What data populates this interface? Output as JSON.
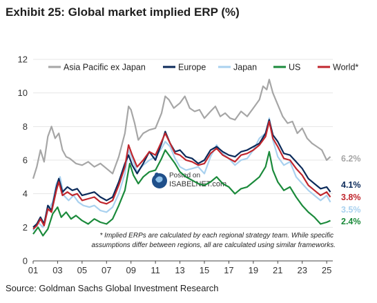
{
  "header": {
    "title": "Exhibit 25: Global market implied ERP (%)"
  },
  "footer": {
    "source": "Source: Goldman Sachs Global Investment Research"
  },
  "note": {
    "line1": "* Implied ERPs are calculated by each regional strategy team. While specific",
    "line2": "assumptions differ between regions, all are calculated using similar frameworks."
  },
  "watermark": {
    "line1": "Posted on",
    "line2": "ISABELNET.com"
  },
  "chart_data": {
    "type": "line",
    "title": "Exhibit 25: Global market implied ERP (%)",
    "xlabel": "",
    "ylabel": "",
    "x_range": [
      2001,
      2025.5
    ],
    "ylim": [
      0,
      12
    ],
    "y_ticks": [
      "0",
      "2",
      "4",
      "6",
      "8",
      "10",
      "12"
    ],
    "x_ticks": [
      {
        "year": 2001,
        "label": "01"
      },
      {
        "year": 2003,
        "label": "03"
      },
      {
        "year": 2005,
        "label": "05"
      },
      {
        "year": 2007,
        "label": "07"
      },
      {
        "year": 2009,
        "label": "09"
      },
      {
        "year": 2011,
        "label": "11"
      },
      {
        "year": 2013,
        "label": "13"
      },
      {
        "year": 2015,
        "label": "15"
      },
      {
        "year": 2017,
        "label": "17"
      },
      {
        "year": 2019,
        "label": "19"
      },
      {
        "year": 2021,
        "label": "21"
      },
      {
        "year": 2023,
        "label": "23"
      },
      {
        "year": 2025,
        "label": "25"
      }
    ],
    "grid": "horizontal",
    "legend_position": "top",
    "series": [
      {
        "name": "Asia Pacific ex Japan",
        "color": "#a6a6a6",
        "end_label": "6.2%",
        "points": [
          [
            2001,
            4.9
          ],
          [
            2001.3,
            5.6
          ],
          [
            2001.6,
            6.6
          ],
          [
            2001.9,
            5.9
          ],
          [
            2002.2,
            7.4
          ],
          [
            2002.5,
            8.0
          ],
          [
            2002.8,
            7.3
          ],
          [
            2003.1,
            7.6
          ],
          [
            2003.4,
            6.6
          ],
          [
            2003.7,
            6.2
          ],
          [
            2004,
            6.1
          ],
          [
            2004.5,
            5.8
          ],
          [
            2005,
            5.7
          ],
          [
            2005.5,
            5.9
          ],
          [
            2006,
            5.6
          ],
          [
            2006.5,
            5.8
          ],
          [
            2007,
            5.5
          ],
          [
            2007.5,
            5.2
          ],
          [
            2008,
            6.2
          ],
          [
            2008.5,
            7.6
          ],
          [
            2008.8,
            9.2
          ],
          [
            2009,
            9.0
          ],
          [
            2009.3,
            8.2
          ],
          [
            2009.6,
            7.2
          ],
          [
            2010,
            7.6
          ],
          [
            2010.5,
            7.8
          ],
          [
            2011,
            7.9
          ],
          [
            2011.5,
            8.8
          ],
          [
            2011.8,
            9.8
          ],
          [
            2012.1,
            9.6
          ],
          [
            2012.5,
            9.1
          ],
          [
            2013,
            9.4
          ],
          [
            2013.4,
            9.8
          ],
          [
            2013.8,
            9.1
          ],
          [
            2014.2,
            8.9
          ],
          [
            2014.6,
            9.0
          ],
          [
            2015,
            8.5
          ],
          [
            2015.5,
            8.9
          ],
          [
            2015.9,
            9.2
          ],
          [
            2016.3,
            8.6
          ],
          [
            2016.7,
            8.8
          ],
          [
            2017.1,
            8.5
          ],
          [
            2017.5,
            8.4
          ],
          [
            2018,
            8.9
          ],
          [
            2018.5,
            8.6
          ],
          [
            2019,
            9.1
          ],
          [
            2019.5,
            9.6
          ],
          [
            2019.8,
            10.4
          ],
          [
            2020.1,
            10.2
          ],
          [
            2020.3,
            10.8
          ],
          [
            2020.6,
            10.0
          ],
          [
            2021,
            9.3
          ],
          [
            2021.4,
            8.6
          ],
          [
            2021.8,
            8.2
          ],
          [
            2022.2,
            8.3
          ],
          [
            2022.6,
            7.6
          ],
          [
            2023,
            7.9
          ],
          [
            2023.4,
            7.3
          ],
          [
            2023.8,
            7.0
          ],
          [
            2024.2,
            6.8
          ],
          [
            2024.6,
            6.6
          ],
          [
            2025,
            6.0
          ],
          [
            2025.3,
            6.2
          ]
        ]
      },
      {
        "name": "Europe",
        "color": "#0b2a5a",
        "end_label": "4.1%",
        "points": [
          [
            2001,
            2.0
          ],
          [
            2001.3,
            2.2
          ],
          [
            2001.6,
            2.6
          ],
          [
            2001.9,
            2.2
          ],
          [
            2002.2,
            3.3
          ],
          [
            2002.5,
            3.0
          ],
          [
            2002.9,
            4.4
          ],
          [
            2003.1,
            4.9
          ],
          [
            2003.4,
            4.1
          ],
          [
            2003.8,
            4.4
          ],
          [
            2004.2,
            4.2
          ],
          [
            2004.6,
            4.3
          ],
          [
            2005,
            3.9
          ],
          [
            2005.5,
            4.0
          ],
          [
            2006,
            4.1
          ],
          [
            2006.5,
            3.8
          ],
          [
            2007,
            3.6
          ],
          [
            2007.5,
            3.8
          ],
          [
            2008,
            4.7
          ],
          [
            2008.5,
            5.8
          ],
          [
            2008.8,
            6.3
          ],
          [
            2009.1,
            5.7
          ],
          [
            2009.5,
            5.2
          ],
          [
            2010,
            5.8
          ],
          [
            2010.5,
            6.5
          ],
          [
            2011,
            6.0
          ],
          [
            2011.5,
            7.0
          ],
          [
            2011.8,
            7.7
          ],
          [
            2012.2,
            7.0
          ],
          [
            2012.6,
            6.5
          ],
          [
            2013,
            6.6
          ],
          [
            2013.5,
            6.2
          ],
          [
            2014,
            6.1
          ],
          [
            2014.5,
            5.8
          ],
          [
            2015,
            6.0
          ],
          [
            2015.5,
            6.6
          ],
          [
            2016,
            6.8
          ],
          [
            2016.5,
            6.5
          ],
          [
            2017,
            6.3
          ],
          [
            2017.5,
            6.2
          ],
          [
            2018,
            6.5
          ],
          [
            2018.5,
            6.6
          ],
          [
            2019,
            6.8
          ],
          [
            2019.5,
            7.0
          ],
          [
            2020,
            7.6
          ],
          [
            2020.3,
            8.4
          ],
          [
            2020.6,
            7.5
          ],
          [
            2021,
            7.1
          ],
          [
            2021.5,
            6.4
          ],
          [
            2022,
            6.3
          ],
          [
            2022.5,
            5.9
          ],
          [
            2023,
            5.5
          ],
          [
            2023.5,
            4.9
          ],
          [
            2024,
            4.6
          ],
          [
            2024.5,
            4.3
          ],
          [
            2025,
            4.4
          ],
          [
            2025.3,
            4.1
          ]
        ]
      },
      {
        "name": "Japan",
        "color": "#a9d1ef",
        "end_label": "3.5%",
        "points": [
          [
            2001,
            1.8
          ],
          [
            2001.4,
            2.3
          ],
          [
            2001.8,
            2.0
          ],
          [
            2002.2,
            3.0
          ],
          [
            2002.6,
            3.5
          ],
          [
            2002.9,
            4.6
          ],
          [
            2003.2,
            5.0
          ],
          [
            2003.5,
            3.9
          ],
          [
            2003.9,
            3.6
          ],
          [
            2004.3,
            3.9
          ],
          [
            2004.7,
            3.5
          ],
          [
            2005.1,
            3.3
          ],
          [
            2005.6,
            3.2
          ],
          [
            2006,
            3.3
          ],
          [
            2006.5,
            3.0
          ],
          [
            2007,
            2.9
          ],
          [
            2007.5,
            3.2
          ],
          [
            2008,
            4.0
          ],
          [
            2008.5,
            5.2
          ],
          [
            2008.8,
            6.6
          ],
          [
            2009.1,
            6.1
          ],
          [
            2009.5,
            5.3
          ],
          [
            2010,
            5.7
          ],
          [
            2010.5,
            6.0
          ],
          [
            2011,
            6.2
          ],
          [
            2011.5,
            6.7
          ],
          [
            2011.8,
            7.1
          ],
          [
            2012.2,
            6.8
          ],
          [
            2012.6,
            6.1
          ],
          [
            2013,
            5.6
          ],
          [
            2013.5,
            5.4
          ],
          [
            2014,
            5.5
          ],
          [
            2014.5,
            5.6
          ],
          [
            2015,
            5.2
          ],
          [
            2015.5,
            6.2
          ],
          [
            2016,
            6.9
          ],
          [
            2016.5,
            6.4
          ],
          [
            2017,
            6.1
          ],
          [
            2017.5,
            5.7
          ],
          [
            2018,
            6.0
          ],
          [
            2018.5,
            6.1
          ],
          [
            2019,
            6.6
          ],
          [
            2019.5,
            7.3
          ],
          [
            2020,
            7.6
          ],
          [
            2020.3,
            8.5
          ],
          [
            2020.6,
            7.2
          ],
          [
            2021,
            6.2
          ],
          [
            2021.5,
            5.7
          ],
          [
            2022,
            5.9
          ],
          [
            2022.5,
            5.0
          ],
          [
            2023,
            4.6
          ],
          [
            2023.5,
            4.2
          ],
          [
            2024,
            3.9
          ],
          [
            2024.5,
            3.6
          ],
          [
            2025,
            3.9
          ],
          [
            2025.3,
            3.5
          ]
        ]
      },
      {
        "name": "US",
        "color": "#1b8a3b",
        "end_label": "2.4%",
        "points": [
          [
            2001,
            1.6
          ],
          [
            2001.4,
            2.0
          ],
          [
            2001.8,
            1.5
          ],
          [
            2002.2,
            1.9
          ],
          [
            2002.6,
            2.8
          ],
          [
            2003,
            3.2
          ],
          [
            2003.3,
            2.6
          ],
          [
            2003.7,
            2.9
          ],
          [
            2004.1,
            2.5
          ],
          [
            2004.5,
            2.7
          ],
          [
            2005,
            2.4
          ],
          [
            2005.5,
            2.2
          ],
          [
            2006,
            2.5
          ],
          [
            2006.5,
            2.3
          ],
          [
            2007,
            2.2
          ],
          [
            2007.5,
            2.5
          ],
          [
            2008,
            3.3
          ],
          [
            2008.5,
            4.2
          ],
          [
            2008.9,
            5.8
          ],
          [
            2009.2,
            5.1
          ],
          [
            2009.6,
            4.6
          ],
          [
            2010,
            5.0
          ],
          [
            2010.5,
            5.3
          ],
          [
            2011,
            5.4
          ],
          [
            2011.5,
            6.1
          ],
          [
            2011.8,
            6.6
          ],
          [
            2012.2,
            6.2
          ],
          [
            2012.6,
            5.8
          ],
          [
            2013,
            5.3
          ],
          [
            2013.5,
            5.0
          ],
          [
            2014,
            4.8
          ],
          [
            2014.5,
            4.6
          ],
          [
            2015,
            4.5
          ],
          [
            2015.5,
            4.7
          ],
          [
            2016,
            5.0
          ],
          [
            2016.5,
            4.6
          ],
          [
            2017,
            4.4
          ],
          [
            2017.5,
            4.0
          ],
          [
            2018,
            4.3
          ],
          [
            2018.5,
            4.4
          ],
          [
            2019,
            4.7
          ],
          [
            2019.5,
            5.0
          ],
          [
            2020,
            5.6
          ],
          [
            2020.3,
            6.5
          ],
          [
            2020.6,
            5.4
          ],
          [
            2021,
            4.7
          ],
          [
            2021.5,
            4.2
          ],
          [
            2022,
            4.4
          ],
          [
            2022.5,
            3.8
          ],
          [
            2023,
            3.3
          ],
          [
            2023.5,
            2.9
          ],
          [
            2024,
            2.6
          ],
          [
            2024.5,
            2.2
          ],
          [
            2025,
            2.3
          ],
          [
            2025.3,
            2.4
          ]
        ]
      },
      {
        "name": "World*",
        "color": "#c0262d",
        "end_label": "3.8%",
        "points": [
          [
            2001,
            1.9
          ],
          [
            2001.3,
            2.1
          ],
          [
            2001.6,
            2.5
          ],
          [
            2001.9,
            2.1
          ],
          [
            2002.2,
            3.1
          ],
          [
            2002.5,
            2.9
          ],
          [
            2002.9,
            4.2
          ],
          [
            2003.1,
            4.7
          ],
          [
            2003.4,
            3.9
          ],
          [
            2003.8,
            4.1
          ],
          [
            2004.2,
            3.9
          ],
          [
            2004.6,
            4.0
          ],
          [
            2005,
            3.6
          ],
          [
            2005.5,
            3.7
          ],
          [
            2006,
            3.8
          ],
          [
            2006.5,
            3.5
          ],
          [
            2007,
            3.4
          ],
          [
            2007.5,
            3.6
          ],
          [
            2008,
            4.5
          ],
          [
            2008.5,
            5.6
          ],
          [
            2008.8,
            6.9
          ],
          [
            2009.1,
            6.3
          ],
          [
            2009.5,
            5.6
          ],
          [
            2010,
            6.0
          ],
          [
            2010.5,
            6.5
          ],
          [
            2011,
            6.3
          ],
          [
            2011.5,
            7.1
          ],
          [
            2011.8,
            7.6
          ],
          [
            2012.2,
            7.0
          ],
          [
            2012.6,
            6.4
          ],
          [
            2013,
            6.3
          ],
          [
            2013.5,
            6.0
          ],
          [
            2014,
            5.9
          ],
          [
            2014.5,
            5.7
          ],
          [
            2015,
            5.8
          ],
          [
            2015.5,
            6.4
          ],
          [
            2016,
            6.7
          ],
          [
            2016.5,
            6.3
          ],
          [
            2017,
            6.1
          ],
          [
            2017.5,
            5.9
          ],
          [
            2018,
            6.3
          ],
          [
            2018.5,
            6.4
          ],
          [
            2019,
            6.6
          ],
          [
            2019.5,
            6.9
          ],
          [
            2020,
            7.4
          ],
          [
            2020.3,
            8.3
          ],
          [
            2020.6,
            7.3
          ],
          [
            2021,
            6.8
          ],
          [
            2021.5,
            6.1
          ],
          [
            2022,
            6.0
          ],
          [
            2022.5,
            5.5
          ],
          [
            2023,
            5.1
          ],
          [
            2023.5,
            4.5
          ],
          [
            2024,
            4.2
          ],
          [
            2024.5,
            3.9
          ],
          [
            2025,
            4.1
          ],
          [
            2025.3,
            3.8
          ]
        ]
      }
    ]
  }
}
